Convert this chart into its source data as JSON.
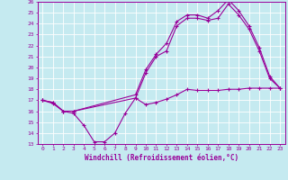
{
  "xlabel": "Windchill (Refroidissement éolien,°C)",
  "background_color": "#c5eaf0",
  "line_color": "#990099",
  "grid_color": "#ffffff",
  "xlim": [
    -0.5,
    23.5
  ],
  "ylim": [
    13,
    26
  ],
  "yticks": [
    13,
    14,
    15,
    16,
    17,
    18,
    19,
    20,
    21,
    22,
    23,
    24,
    25,
    26
  ],
  "xticks": [
    0,
    1,
    2,
    3,
    4,
    5,
    6,
    7,
    8,
    9,
    10,
    11,
    12,
    13,
    14,
    15,
    16,
    17,
    18,
    19,
    20,
    21,
    22,
    23
  ],
  "line1_x": [
    0,
    1,
    2,
    3,
    4,
    5,
    6,
    7,
    8,
    9,
    10,
    11,
    12,
    13,
    14,
    15,
    16,
    17,
    18,
    19,
    20,
    21,
    22,
    23
  ],
  "line1_y": [
    17.0,
    16.7,
    16.0,
    15.8,
    14.7,
    13.2,
    13.2,
    14.0,
    15.8,
    17.2,
    16.6,
    16.8,
    17.1,
    17.5,
    18.0,
    17.9,
    17.9,
    17.9,
    18.0,
    18.0,
    18.1,
    18.1,
    18.1,
    18.1
  ],
  "line2_x": [
    0,
    1,
    2,
    3,
    9,
    10,
    11,
    12,
    13,
    14,
    15,
    16,
    17,
    18,
    19,
    20,
    21,
    22,
    23
  ],
  "line2_y": [
    17.0,
    16.8,
    16.0,
    16.0,
    17.5,
    19.8,
    21.2,
    22.2,
    24.2,
    24.8,
    24.8,
    24.5,
    25.2,
    26.2,
    25.2,
    23.8,
    21.8,
    19.2,
    18.1
  ],
  "line3_x": [
    0,
    1,
    2,
    3,
    9,
    10,
    11,
    12,
    13,
    14,
    15,
    16,
    17,
    18,
    19,
    20,
    21,
    22,
    23
  ],
  "line3_y": [
    17.0,
    16.8,
    16.0,
    16.0,
    17.2,
    19.5,
    21.0,
    21.5,
    23.8,
    24.5,
    24.5,
    24.3,
    24.5,
    25.8,
    24.8,
    23.5,
    21.5,
    19.0,
    18.1
  ]
}
